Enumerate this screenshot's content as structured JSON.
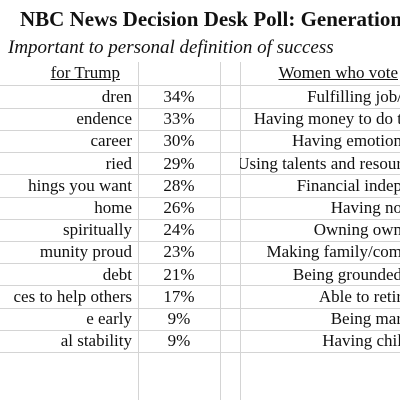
{
  "title": "NBC News Decision Desk Poll: Generation Z",
  "subtitle": "Important to personal definition of success",
  "header": {
    "left": "for Trump",
    "right": "Women who vote"
  },
  "rows": [
    {
      "left": "dren",
      "pct": "34%",
      "right": "Fulfilling job/"
    },
    {
      "left": "endence",
      "pct": "33%",
      "right": "Having money to do t"
    },
    {
      "left": "career",
      "pct": "30%",
      "right": "Having emotion"
    },
    {
      "left": "ried",
      "pct": "29%",
      "right": "Using talents and resour"
    },
    {
      "left": "hings you want",
      "pct": "28%",
      "right": "Financial indep"
    },
    {
      "left": "home",
      "pct": "26%",
      "right": "Having no"
    },
    {
      "left": "spiritually",
      "pct": "24%",
      "right": "Owning own"
    },
    {
      "left": "munity proud",
      "pct": "23%",
      "right": "Making family/com"
    },
    {
      "left": "debt",
      "pct": "21%",
      "right": "Being grounded"
    },
    {
      "left": "ces to help others",
      "pct": "17%",
      "right": "Able to retir"
    },
    {
      "left": "e early",
      "pct": "9%",
      "right": "Being mar"
    },
    {
      "left": "al stability",
      "pct": "9%",
      "right": "Having chil"
    }
  ]
}
